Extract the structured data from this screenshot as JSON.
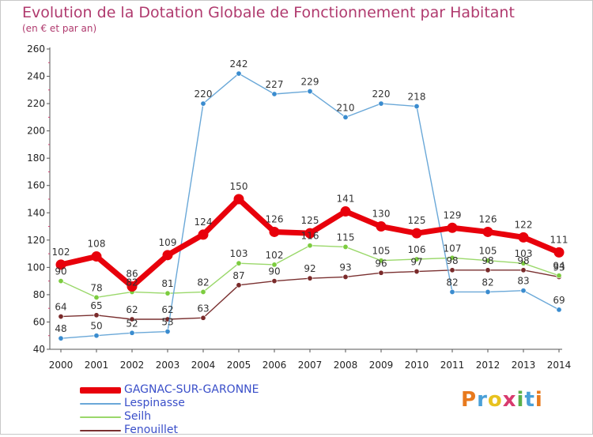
{
  "header": {
    "title": "Evolution de la Dotation Globale de Fonctionnement par Habitant",
    "subtitle": "(en € et par an)"
  },
  "logo": {
    "text": "Proxiti",
    "colors": [
      "#e87a1e",
      "#4aa0d8",
      "#e8c21e",
      "#d83a6e",
      "#5ab04a",
      "#4aa0d8",
      "#e87a1e"
    ]
  },
  "chart_data": {
    "type": "line",
    "x": [
      2000,
      2001,
      2002,
      2003,
      2004,
      2005,
      2006,
      2007,
      2008,
      2009,
      2010,
      2011,
      2012,
      2013,
      2014
    ],
    "ylim": [
      40,
      260
    ],
    "yticks": [
      40,
      60,
      80,
      100,
      120,
      140,
      160,
      180,
      200,
      220,
      240,
      260
    ],
    "grid": false,
    "legend": "bottom-left",
    "series": [
      {
        "name": "GAGNAC-SUR-GARONNE",
        "color": "#e8000b",
        "marker": "#e8000b",
        "values": [
          102,
          108,
          86,
          109,
          124,
          150,
          126,
          125,
          141,
          130,
          125,
          129,
          126,
          122,
          111
        ]
      },
      {
        "name": "Lespinasse",
        "color": "#6aa8d8",
        "marker": "#3a8ccf",
        "values": [
          48,
          50,
          52,
          53,
          220,
          242,
          227,
          229,
          210,
          220,
          218,
          82,
          82,
          83,
          69
        ]
      },
      {
        "name": "Seilh",
        "color": "#9ad86a",
        "marker": "#7ccc3f",
        "values": [
          90,
          78,
          82,
          81,
          82,
          103,
          102,
          116,
          115,
          105,
          106,
          107,
          105,
          103,
          94
        ]
      },
      {
        "name": "Fenouillet",
        "color": "#7a3030",
        "marker": "#7a2a2a",
        "values": [
          64,
          65,
          62,
          62,
          63,
          87,
          90,
          92,
          93,
          96,
          97,
          98,
          98,
          98,
          93
        ]
      }
    ]
  }
}
